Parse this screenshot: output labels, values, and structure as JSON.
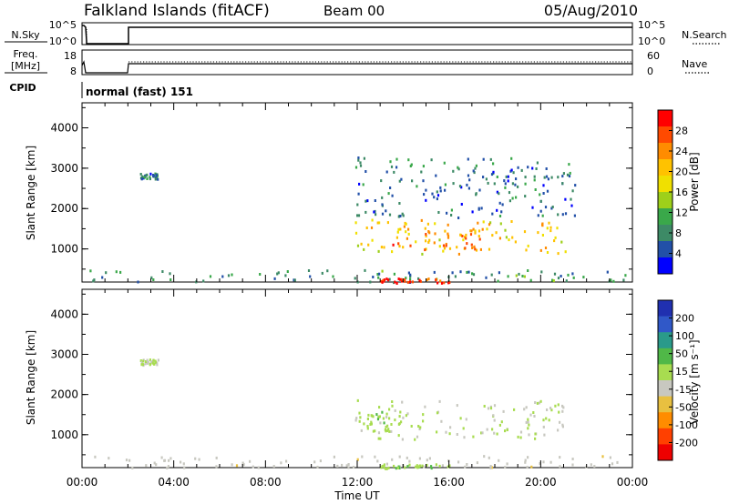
{
  "header": {
    "title": "Falkland Islands (fitACF)",
    "beam": "Beam 00",
    "date": "05/Aug/2010"
  },
  "params_panel": {
    "nsky_label": "N.Sky",
    "freq_label_1": "Freq.",
    "freq_label_2": "[MHz]",
    "cpid_label": "CPID",
    "nsearch_label": "N.Search",
    "nave_label": "Nave",
    "noise_ticks_left": [
      "10^5",
      "10^0"
    ],
    "noise_ticks_right": [
      "10^5",
      "10^0"
    ],
    "freq_ticks": [
      "18",
      "8"
    ],
    "nave_ticks": [
      "60",
      "0"
    ],
    "cpid_text": "normal (fast) 151"
  },
  "power_colorbar": {
    "label": "Power [dB]",
    "ticks": [
      "28",
      "24",
      "20",
      "16",
      "12",
      "8",
      "4"
    ],
    "colors": [
      "#ff0000",
      "#ff4a00",
      "#ff8c00",
      "#ffc200",
      "#f0e000",
      "#9ed01a",
      "#3aa84a",
      "#3d8a66",
      "#2250a8",
      "#0000ff"
    ]
  },
  "velocity_colorbar": {
    "label": "Velocity [m s⁻¹]",
    "ticks": [
      "200",
      "100",
      "50",
      "15",
      "-15",
      "-50",
      "-100",
      "-200"
    ],
    "colors": [
      "#2030b0",
      "#3058c8",
      "#2a9a8a",
      "#50b848",
      "#a8dc50",
      "#c8c8c0",
      "#e8c040",
      "#ff8c00",
      "#ff4000",
      "#ee0000"
    ]
  },
  "chart_data": [
    {
      "type": "heatmap",
      "title": "Power",
      "xlabel": "Time UT",
      "ylabel": "Slant Range [km]",
      "x_ticks": [
        "00:00",
        "04:00",
        "08:00",
        "12:00",
        "16:00",
        "20:00",
        "00:00"
      ],
      "y_ticks": [
        "1000",
        "2000",
        "3000",
        "4000"
      ],
      "xlim_hours": [
        0,
        24
      ],
      "ylim_km": [
        180,
        4620
      ],
      "zlim_db": [
        0,
        32
      ],
      "regions": [
        {
          "t0": 11.9,
          "t1": 21.1,
          "r0": 900,
          "r1": 1750,
          "power_db": 20
        },
        {
          "t0": 13.2,
          "t1": 17.5,
          "r0": 1000,
          "r1": 1500,
          "power_db": 26
        },
        {
          "t0": 11.9,
          "t1": 21.5,
          "r0": 1800,
          "r1": 3300,
          "power_db": 6
        },
        {
          "t0": 2.5,
          "t1": 3.3,
          "r0": 2750,
          "r1": 2900,
          "power_db": 6
        },
        {
          "t0": 0,
          "t1": 24,
          "r0": 200,
          "r1": 500,
          "power_db": 8
        },
        {
          "t0": 13.0,
          "t1": 16.0,
          "r0": 180,
          "r1": 300,
          "power_db": 30
        }
      ]
    },
    {
      "type": "heatmap",
      "title": "Velocity",
      "xlabel": "Time UT",
      "ylabel": "Slant Range [km]",
      "x_ticks": [
        "00:00",
        "04:00",
        "08:00",
        "12:00",
        "16:00",
        "20:00",
        "00:00"
      ],
      "y_ticks": [
        "1000",
        "2000",
        "3000",
        "4000"
      ],
      "xlim_hours": [
        0,
        24
      ],
      "ylim_km": [
        180,
        4620
      ],
      "zlim_ms": [
        -250,
        250
      ],
      "regions": [
        {
          "t0": 11.9,
          "t1": 21.1,
          "r0": 900,
          "r1": 1900,
          "velocity_ms": 0
        },
        {
          "t0": 11.9,
          "t1": 13.5,
          "r0": 1100,
          "r1": 1600,
          "velocity_ms": 30
        },
        {
          "t0": 2.5,
          "t1": 3.3,
          "r0": 2750,
          "r1": 2900,
          "velocity_ms": 0
        },
        {
          "t0": 0,
          "t1": 24,
          "r0": 200,
          "r1": 500,
          "velocity_ms": -30
        },
        {
          "t0": 13.0,
          "t1": 16.0,
          "r0": 180,
          "r1": 300,
          "velocity_ms": 40
        }
      ]
    }
  ]
}
